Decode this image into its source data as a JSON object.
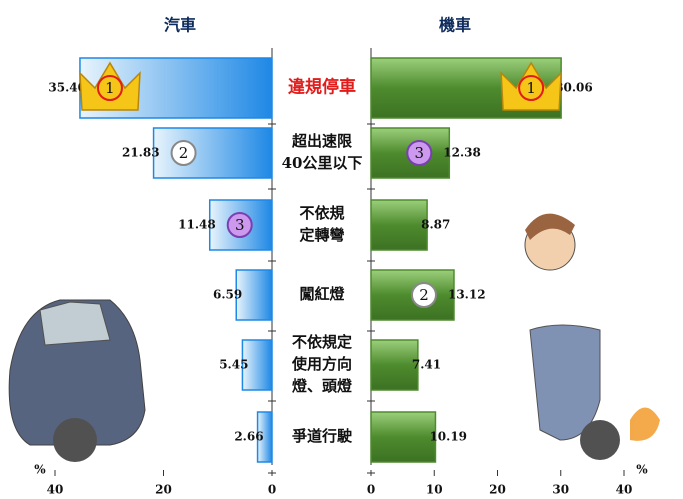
{
  "chart_data": {
    "type": "butterfly-bar",
    "categories": [
      [
        "違規停車"
      ],
      [
        "超出速限",
        "40公里以下"
      ],
      [
        "不依規",
        "定轉彎"
      ],
      [
        "闖紅燈"
      ],
      [
        "不依規定",
        "使用方向",
        "燈、頭燈"
      ],
      [
        "爭道行駛"
      ]
    ],
    "x_unit": "%",
    "xlim": [
      0,
      40
    ],
    "series": [
      {
        "name": "汽車",
        "color": "#1e88e5",
        "values": [
          35.4,
          21.83,
          11.48,
          6.59,
          5.45,
          2.66
        ],
        "value_labels": [
          "35.40",
          "21.83",
          "11.48",
          "6.59",
          "5.45",
          "2.66"
        ],
        "ranks": [
          1,
          2,
          3,
          null,
          null,
          null
        ],
        "xticks": [
          0,
          20,
          40
        ]
      },
      {
        "name": "機車",
        "color": "#4e8b2e",
        "values": [
          30.06,
          12.38,
          8.87,
          13.12,
          7.41,
          10.19
        ],
        "value_labels": [
          "30.06",
          "12.38",
          "8.87",
          "13.12",
          "7.41",
          "10.19"
        ],
        "ranks": [
          1,
          3,
          null,
          2,
          null,
          null
        ],
        "xticks": [
          0,
          10,
          20,
          30,
          40
        ]
      }
    ]
  }
}
